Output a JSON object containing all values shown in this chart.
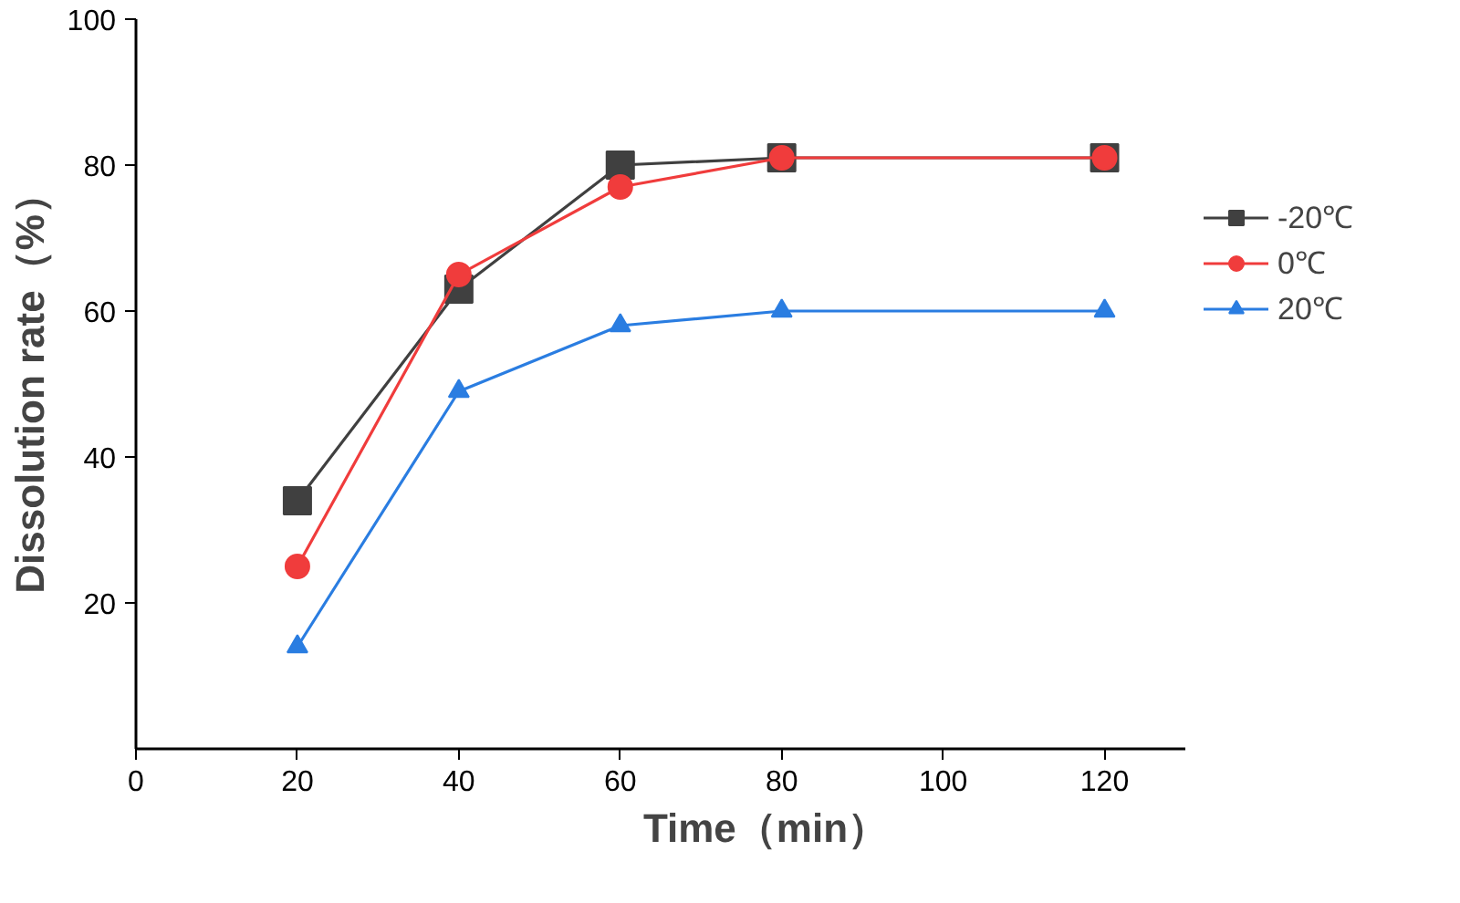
{
  "chart_data": {
    "type": "line",
    "xlabel": "Time（min）",
    "ylabel": "Dissolution rate（%）",
    "x": [
      20,
      40,
      60,
      80,
      120
    ],
    "xlim": [
      0,
      130
    ],
    "xticks": [
      0,
      20,
      40,
      60,
      80,
      100,
      120
    ],
    "ylim": [
      0,
      100
    ],
    "yticks": [
      20,
      40,
      60,
      80,
      100
    ],
    "grid": false,
    "legend": "right",
    "line_style": "solid",
    "series": [
      {
        "name": "-20℃",
        "color": "#404040",
        "marker": "square",
        "values": [
          34,
          63,
          80,
          81,
          81
        ]
      },
      {
        "name": "0℃",
        "color": "#f03c3c",
        "marker": "circle",
        "values": [
          25,
          65,
          77,
          81,
          81
        ]
      },
      {
        "name": "20℃",
        "color": "#2a7de1",
        "marker": "triangle",
        "values": [
          14,
          49,
          58,
          60,
          60
        ]
      }
    ]
  }
}
